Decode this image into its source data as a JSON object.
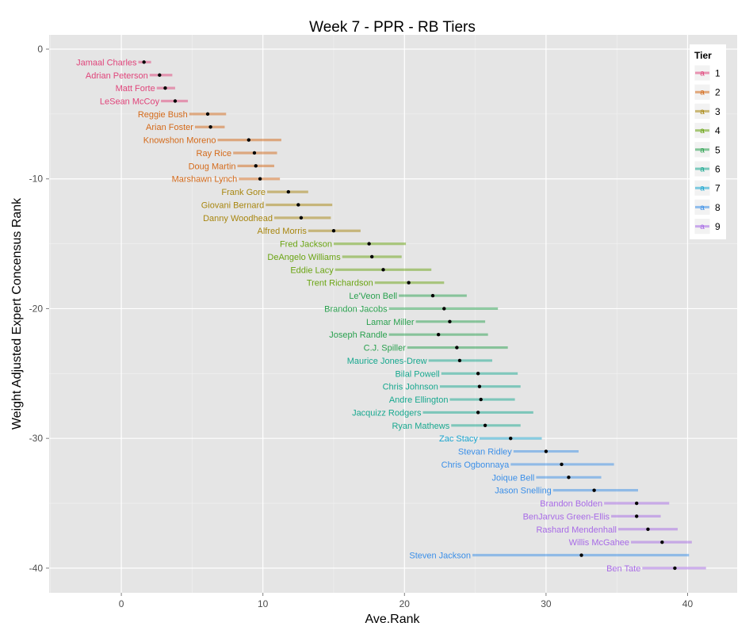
{
  "chart_data": {
    "type": "scatter",
    "title": "Week 7 - PPR - RB Tiers",
    "xlabel": "Ave.Rank",
    "ylabel": "Weight Adjusted Expert Concensus Rank",
    "xlim": [
      -5.1,
      43.5
    ],
    "ylim": [
      -41.9,
      1.1
    ],
    "x_ticks": [
      0,
      10,
      20,
      30,
      40
    ],
    "y_ticks": [
      0,
      -10,
      -20,
      -30,
      -40
    ],
    "grid": true,
    "legend": {
      "title": "Tier",
      "position": "right",
      "key_glyph": "a",
      "entries": [
        "1",
        "2",
        "3",
        "4",
        "5",
        "6",
        "7",
        "8",
        "9"
      ]
    },
    "tier_colors": [
      "#e0457b",
      "#d46a1a",
      "#a8860f",
      "#6aa412",
      "#2aa14f",
      "#18a88f",
      "#1aa5cf",
      "#3b8fe8",
      "#a86be6"
    ],
    "points": [
      {
        "name": "Jamaal Charles",
        "tier": 1,
        "x": 1.6,
        "y": -1,
        "lo": 1.2,
        "hi": 2.1
      },
      {
        "name": "Adrian Peterson",
        "tier": 1,
        "x": 2.7,
        "y": -2,
        "lo": 2.0,
        "hi": 3.6
      },
      {
        "name": "Matt Forte",
        "tier": 1,
        "x": 3.1,
        "y": -3,
        "lo": 2.5,
        "hi": 3.8
      },
      {
        "name": "LeSean McCoy",
        "tier": 1,
        "x": 3.8,
        "y": -4,
        "lo": 2.8,
        "hi": 4.7
      },
      {
        "name": "Reggie Bush",
        "tier": 2,
        "x": 6.1,
        "y": -5,
        "lo": 4.8,
        "hi": 7.4
      },
      {
        "name": "Arian Foster",
        "tier": 2,
        "x": 6.3,
        "y": -6,
        "lo": 5.2,
        "hi": 7.3
      },
      {
        "name": "Knowshon Moreno",
        "tier": 2,
        "x": 9.0,
        "y": -7,
        "lo": 6.8,
        "hi": 11.3
      },
      {
        "name": "Ray Rice",
        "tier": 2,
        "x": 9.4,
        "y": -8,
        "lo": 7.9,
        "hi": 11.0
      },
      {
        "name": "Doug Martin",
        "tier": 2,
        "x": 9.5,
        "y": -9,
        "lo": 8.2,
        "hi": 10.8
      },
      {
        "name": "Marshawn Lynch",
        "tier": 2,
        "x": 9.8,
        "y": -10,
        "lo": 8.3,
        "hi": 11.2
      },
      {
        "name": "Frank Gore",
        "tier": 3,
        "x": 11.8,
        "y": -11,
        "lo": 10.3,
        "hi": 13.2
      },
      {
        "name": "Giovani Bernard",
        "tier": 3,
        "x": 12.5,
        "y": -12,
        "lo": 10.2,
        "hi": 14.9
      },
      {
        "name": "Danny Woodhead",
        "tier": 3,
        "x": 12.7,
        "y": -13,
        "lo": 10.8,
        "hi": 14.8
      },
      {
        "name": "Alfred Morris",
        "tier": 3,
        "x": 15.0,
        "y": -14,
        "lo": 13.2,
        "hi": 16.9
      },
      {
        "name": "Fred Jackson",
        "tier": 4,
        "x": 17.5,
        "y": -15,
        "lo": 15.0,
        "hi": 20.1
      },
      {
        "name": "DeAngelo Williams",
        "tier": 4,
        "x": 17.7,
        "y": -16,
        "lo": 15.6,
        "hi": 19.8
      },
      {
        "name": "Eddie Lacy",
        "tier": 4,
        "x": 18.5,
        "y": -17,
        "lo": 15.1,
        "hi": 21.9
      },
      {
        "name": "Trent Richardson",
        "tier": 4,
        "x": 20.3,
        "y": -18,
        "lo": 17.9,
        "hi": 22.8
      },
      {
        "name": "Le'Veon Bell",
        "tier": 5,
        "x": 22.0,
        "y": -19,
        "lo": 19.6,
        "hi": 24.4
      },
      {
        "name": "Brandon Jacobs",
        "tier": 5,
        "x": 22.8,
        "y": -20,
        "lo": 18.9,
        "hi": 26.6
      },
      {
        "name": "Lamar Miller",
        "tier": 5,
        "x": 23.2,
        "y": -21,
        "lo": 20.8,
        "hi": 25.7
      },
      {
        "name": "Joseph Randle",
        "tier": 5,
        "x": 22.4,
        "y": -22,
        "lo": 18.9,
        "hi": 25.9
      },
      {
        "name": "C.J. Spiller",
        "tier": 5,
        "x": 23.7,
        "y": -23,
        "lo": 20.2,
        "hi": 27.3
      },
      {
        "name": "Maurice Jones-Drew",
        "tier": 6,
        "x": 23.9,
        "y": -24,
        "lo": 21.7,
        "hi": 26.2
      },
      {
        "name": "Bilal Powell",
        "tier": 6,
        "x": 25.2,
        "y": -25,
        "lo": 22.6,
        "hi": 28.0
      },
      {
        "name": "Chris Johnson",
        "tier": 6,
        "x": 25.3,
        "y": -26,
        "lo": 22.5,
        "hi": 28.2
      },
      {
        "name": "Andre Ellington",
        "tier": 6,
        "x": 25.4,
        "y": -27,
        "lo": 23.2,
        "hi": 27.8
      },
      {
        "name": "Jacquizz Rodgers",
        "tier": 6,
        "x": 25.2,
        "y": -28,
        "lo": 21.3,
        "hi": 29.1
      },
      {
        "name": "Ryan Mathews",
        "tier": 6,
        "x": 25.7,
        "y": -29,
        "lo": 23.3,
        "hi": 28.2
      },
      {
        "name": "Zac Stacy",
        "tier": 7,
        "x": 27.5,
        "y": -30,
        "lo": 25.3,
        "hi": 29.7
      },
      {
        "name": "Stevan Ridley",
        "tier": 8,
        "x": 30.0,
        "y": -31,
        "lo": 27.7,
        "hi": 32.3
      },
      {
        "name": "Chris Ogbonnaya",
        "tier": 8,
        "x": 31.1,
        "y": -32,
        "lo": 27.5,
        "hi": 34.8
      },
      {
        "name": "Joique Bell",
        "tier": 8,
        "x": 31.6,
        "y": -33,
        "lo": 29.3,
        "hi": 33.9
      },
      {
        "name": "Jason Snelling",
        "tier": 8,
        "x": 33.4,
        "y": -34,
        "lo": 30.5,
        "hi": 36.5
      },
      {
        "name": "Brandon Bolden",
        "tier": 9,
        "x": 36.4,
        "y": -35,
        "lo": 34.1,
        "hi": 38.7
      },
      {
        "name": "BenJarvus Green-Ellis",
        "tier": 9,
        "x": 36.4,
        "y": -36,
        "lo": 34.6,
        "hi": 38.1
      },
      {
        "name": "Rashard Mendenhall",
        "tier": 9,
        "x": 37.2,
        "y": -37,
        "lo": 35.1,
        "hi": 39.3
      },
      {
        "name": "Willis McGahee",
        "tier": 9,
        "x": 38.2,
        "y": -38,
        "lo": 36.0,
        "hi": 40.3
      },
      {
        "name": "Steven Jackson",
        "tier": 8,
        "x": 32.5,
        "y": -39,
        "lo": 24.8,
        "hi": 40.1
      },
      {
        "name": "Ben Tate",
        "tier": 9,
        "x": 39.1,
        "y": -40,
        "lo": 36.8,
        "hi": 41.3
      }
    ]
  }
}
